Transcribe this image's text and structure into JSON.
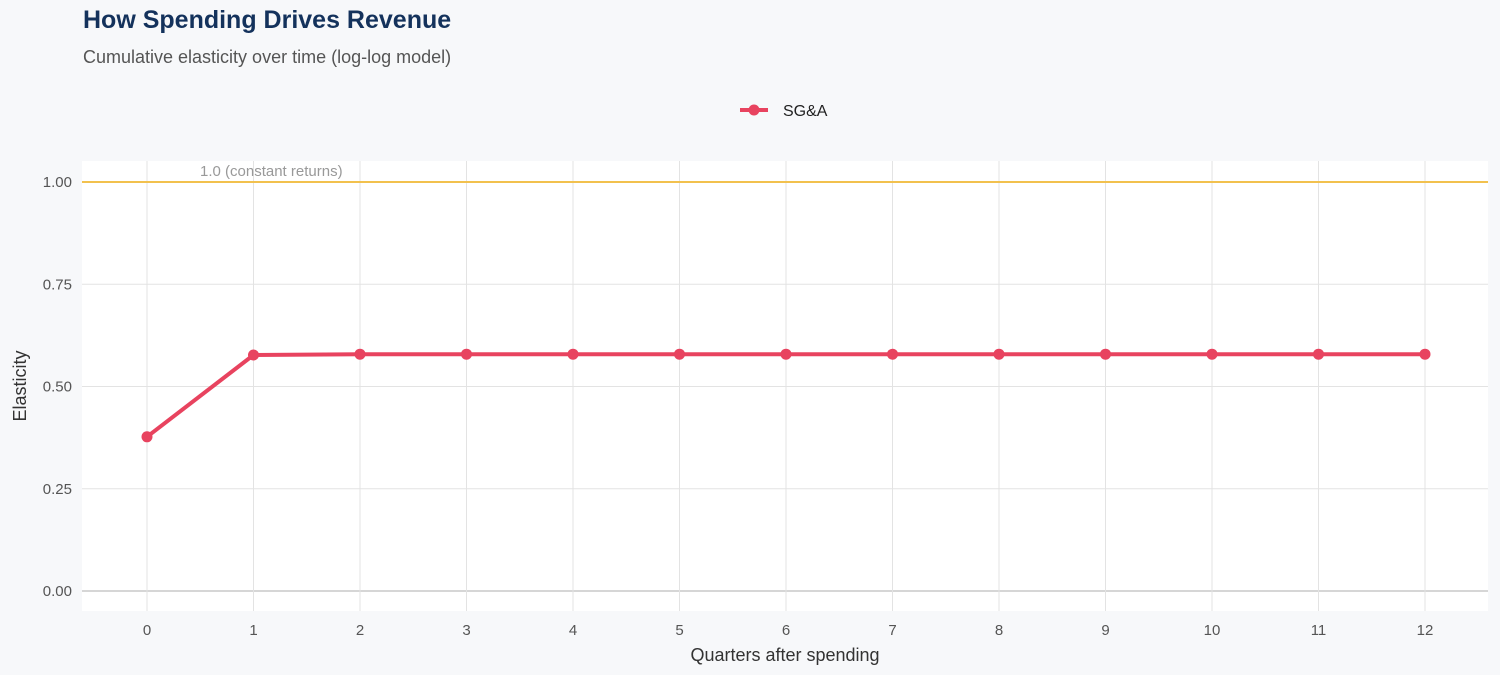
{
  "header": {
    "title": "How Spending Drives Revenue",
    "subtitle": "Cumulative elasticity over time (log-log model)"
  },
  "chart_data": {
    "type": "line",
    "title": "How Spending Drives Revenue",
    "subtitle": "Cumulative elasticity over time (log-log model)",
    "xlabel": "Quarters after spending",
    "ylabel": "Elasticity",
    "x": [
      0,
      1,
      2,
      3,
      4,
      5,
      6,
      7,
      8,
      9,
      10,
      11,
      12
    ],
    "xticks": [
      "0",
      "1",
      "2",
      "3",
      "4",
      "5",
      "6",
      "7",
      "8",
      "9",
      "10",
      "11",
      "12"
    ],
    "yticks": [
      "0.00",
      "0.25",
      "0.50",
      "0.75",
      "1.00"
    ],
    "ylim": [
      0,
      1.0
    ],
    "xlim": [
      -0.6,
      12.6
    ],
    "grid": true,
    "legend_position": "top",
    "series": [
      {
        "name": "SG&A",
        "color": "#e8435f",
        "values": [
          0.377,
          0.577,
          0.579,
          0.579,
          0.579,
          0.579,
          0.579,
          0.579,
          0.579,
          0.579,
          0.579,
          0.579,
          0.579
        ]
      }
    ],
    "reference_line": {
      "y": 1.0,
      "label": "1.0 (constant returns)",
      "color": "#f2c14e"
    }
  }
}
